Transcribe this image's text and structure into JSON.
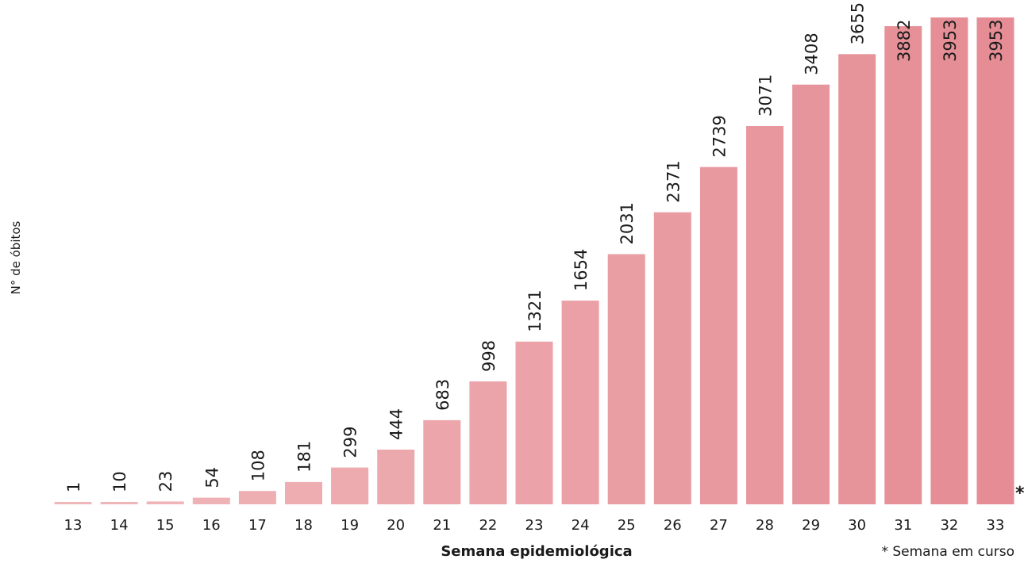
{
  "chart_data": {
    "type": "bar",
    "title": "",
    "xlabel": "Semana epidemiológica",
    "ylabel": "N° de óbitos",
    "categories": [
      "13",
      "14",
      "15",
      "16",
      "17",
      "18",
      "19",
      "20",
      "21",
      "22",
      "23",
      "24",
      "25",
      "26",
      "27",
      "28",
      "29",
      "30",
      "31",
      "32",
      "33"
    ],
    "values": [
      1,
      10,
      23,
      54,
      108,
      181,
      299,
      444,
      683,
      998,
      1321,
      1654,
      2031,
      2371,
      2739,
      3071,
      3408,
      3655,
      3882,
      3953,
      3953
    ],
    "ylim": [
      0,
      3953
    ],
    "grid": false,
    "legend": "none",
    "footnote": "* Semana em curso",
    "current_week_marker": "*",
    "colors": {
      "bar_start": "#f0b8bb",
      "bar_end": "#e58c94",
      "text": "#1a1a1a"
    }
  }
}
